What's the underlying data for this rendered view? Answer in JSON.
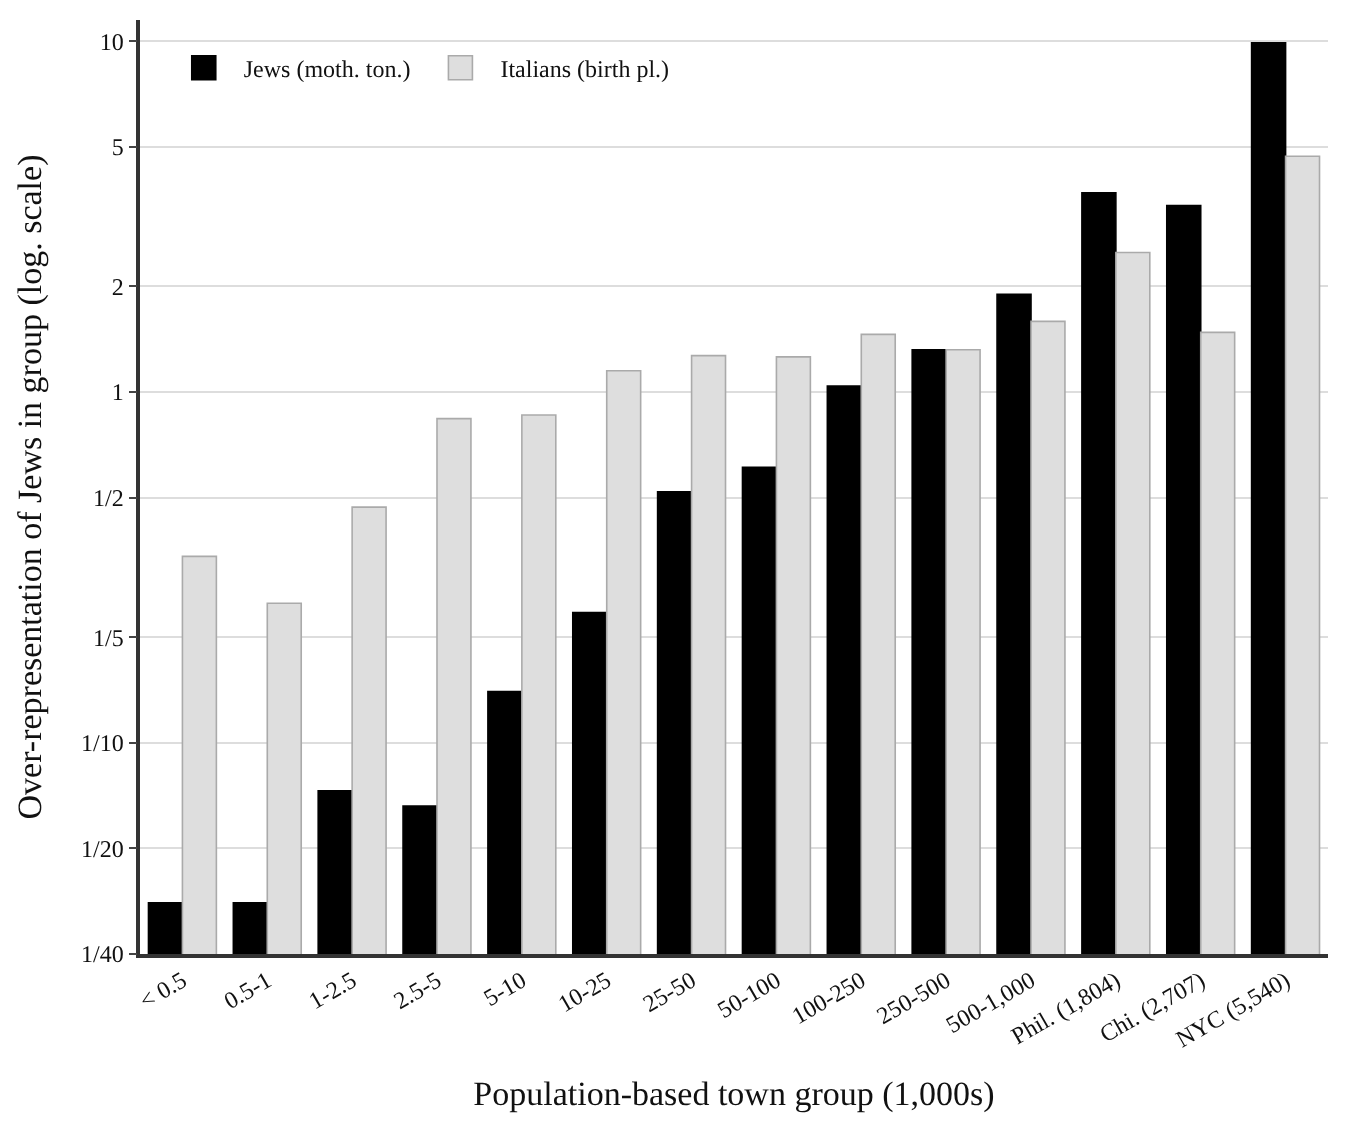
{
  "chart_data": {
    "type": "bar",
    "xlabel": "Population-based town group (1,000s)",
    "ylabel": "Over-representation of Jews in group (log. scale)",
    "categories": [
      "< 0.5",
      "0.5-1",
      "1-2.5",
      "2.5-5",
      "5-10",
      "10-25",
      "25-50",
      "50-100",
      "100-250",
      "250-500",
      "500-1,000",
      "Phil. (1,804)",
      "Chi. (2,707)",
      "NYC (5,540)"
    ],
    "series": [
      {
        "name": "Jews (moth. ton.)",
        "color": "#000000",
        "values": [
          0.035,
          0.035,
          0.073,
          0.066,
          0.14,
          0.235,
          0.52,
          0.61,
          1.04,
          1.32,
          1.9,
          3.7,
          3.4,
          9.9
        ]
      },
      {
        "name": "Italians (birth pl.)",
        "color": "#dedede",
        "values": [
          0.34,
          0.25,
          0.47,
          0.84,
          0.86,
          1.15,
          1.27,
          1.26,
          1.46,
          1.32,
          1.59,
          2.5,
          1.48,
          4.7
        ]
      }
    ],
    "log": "y",
    "ylim": [
      0.025,
      11.5
    ],
    "yticks": [
      {
        "value": 0.025,
        "label": "1/40"
      },
      {
        "value": 0.05,
        "label": "1/20"
      },
      {
        "value": 0.1,
        "label": "1/10"
      },
      {
        "value": 0.2,
        "label": "1/5"
      },
      {
        "value": 0.5,
        "label": "1/2"
      },
      1,
      2,
      5,
      10
    ],
    "grid": "y",
    "legend": "top left"
  }
}
